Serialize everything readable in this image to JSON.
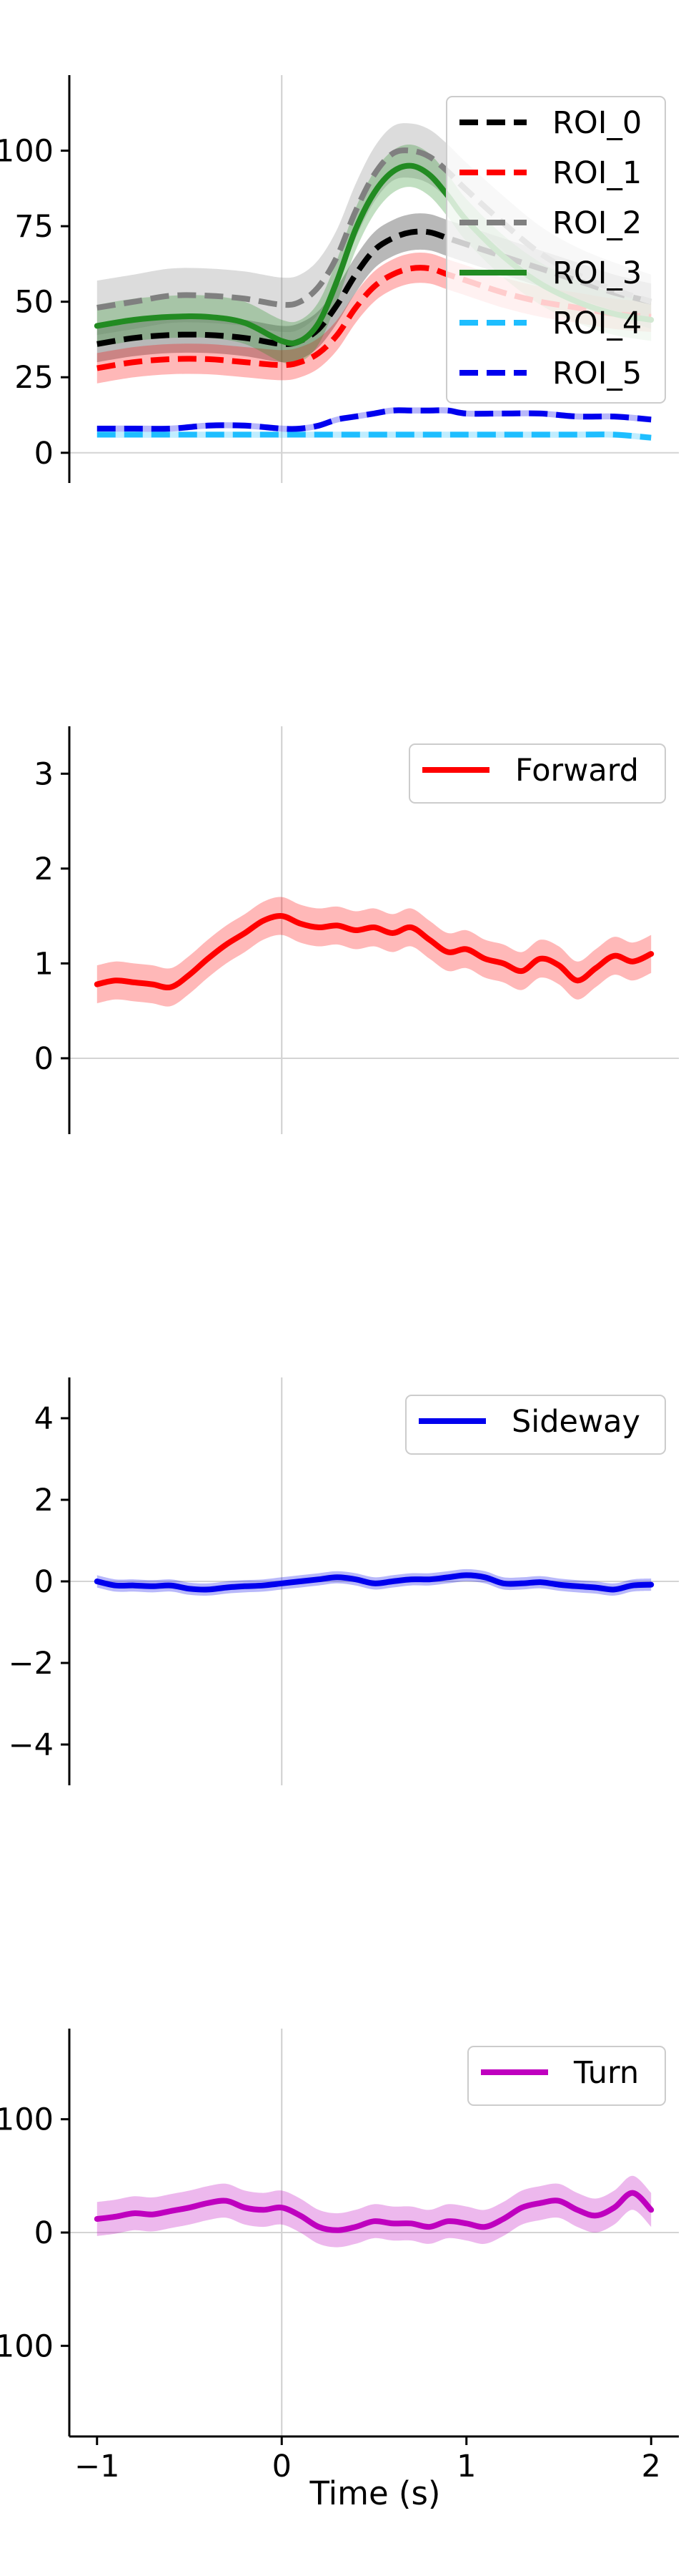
{
  "figure": {
    "xlabel": "Time (s)"
  },
  "chart_data": [
    {
      "type": "line",
      "id": "rois",
      "ylim": [
        -10,
        125
      ],
      "yticks": [
        0,
        25,
        50,
        75,
        100
      ],
      "ytick_labels": [
        "0",
        "25",
        "50",
        "75",
        "100"
      ],
      "xlim": [
        -1.15,
        2.15
      ],
      "legend": "top-right",
      "x": [
        -1.0,
        -0.8,
        -0.6,
        -0.4,
        -0.2,
        0.0,
        0.1,
        0.2,
        0.3,
        0.4,
        0.5,
        0.6,
        0.7,
        0.8,
        0.9,
        1.0,
        1.2,
        1.4,
        1.6,
        1.8,
        2.0
      ],
      "series": [
        {
          "name": "ROI_0",
          "color": "#000000",
          "dash": true,
          "band": 6,
          "values": [
            36,
            38,
            39,
            39,
            38,
            36,
            37,
            41,
            49,
            59,
            67,
            71,
            73,
            73,
            71,
            69,
            65,
            61,
            57,
            53,
            50
          ]
        },
        {
          "name": "ROI_1",
          "color": "#ff0000",
          "dash": true,
          "band": 5,
          "values": [
            28,
            30,
            31,
            31,
            30,
            29,
            30,
            33,
            39,
            48,
            55,
            59,
            61,
            61,
            59,
            57,
            53,
            50,
            48,
            46,
            45
          ]
        },
        {
          "name": "ROI_2",
          "color": "#808080",
          "dash": true,
          "band": 9,
          "values": [
            48,
            50,
            52,
            52,
            51,
            49,
            50,
            55,
            65,
            80,
            92,
            99,
            100,
            98,
            93,
            87,
            76,
            66,
            59,
            54,
            50
          ]
        },
        {
          "name": "ROI_3",
          "color": "#228b22",
          "dash": false,
          "band": 7,
          "values": [
            42,
            44,
            45,
            45,
            43,
            37,
            37,
            43,
            57,
            74,
            86,
            93,
            95,
            92,
            85,
            77,
            65,
            56,
            50,
            46,
            44
          ]
        },
        {
          "name": "ROI_4",
          "color": "#1ebeff",
          "dash": true,
          "band": 1,
          "values": [
            6,
            6,
            6,
            6,
            6,
            6,
            6,
            6,
            6,
            6,
            6,
            6,
            6,
            6,
            6,
            6,
            6,
            6,
            6,
            6,
            5
          ]
        },
        {
          "name": "ROI_5",
          "color": "#0000ee",
          "dash": true,
          "band": 1,
          "values": [
            8,
            8,
            8,
            9,
            9,
            8,
            8,
            9,
            11,
            12,
            13,
            14,
            14,
            14,
            14,
            13,
            13,
            13,
            12,
            12,
            11
          ]
        }
      ]
    },
    {
      "type": "line",
      "id": "forward",
      "ylim": [
        -0.8,
        3.5
      ],
      "yticks": [
        0,
        1,
        2,
        3
      ],
      "ytick_labels": [
        "0",
        "1",
        "2",
        "3"
      ],
      "xlim": [
        -1.15,
        2.15
      ],
      "legend": "top-right",
      "x": [
        -1.0,
        -0.9,
        -0.8,
        -0.7,
        -0.6,
        -0.5,
        -0.4,
        -0.3,
        -0.2,
        -0.1,
        0.0,
        0.1,
        0.2,
        0.3,
        0.4,
        0.5,
        0.6,
        0.7,
        0.8,
        0.9,
        1.0,
        1.1,
        1.2,
        1.3,
        1.4,
        1.5,
        1.6,
        1.7,
        1.8,
        1.9,
        2.0
      ],
      "series": [
        {
          "name": "Forward",
          "color": "#ff0000",
          "dash": false,
          "band": 0.2,
          "values": [
            0.78,
            0.82,
            0.8,
            0.78,
            0.75,
            0.88,
            1.05,
            1.2,
            1.32,
            1.45,
            1.5,
            1.42,
            1.38,
            1.4,
            1.35,
            1.38,
            1.32,
            1.38,
            1.25,
            1.12,
            1.15,
            1.05,
            1.0,
            0.92,
            1.05,
            0.98,
            0.82,
            0.95,
            1.08,
            1.02,
            1.1
          ]
        }
      ]
    },
    {
      "type": "line",
      "id": "sideway",
      "ylim": [
        -5,
        5
      ],
      "yticks": [
        -4,
        -2,
        0,
        2,
        4
      ],
      "ytick_labels": [
        "−4",
        "−2",
        "0",
        "2",
        "4"
      ],
      "xlim": [
        -1.15,
        2.15
      ],
      "legend": "top-right",
      "x": [
        -1.0,
        -0.9,
        -0.8,
        -0.7,
        -0.6,
        -0.5,
        -0.4,
        -0.3,
        -0.2,
        -0.1,
        0.0,
        0.1,
        0.2,
        0.3,
        0.4,
        0.5,
        0.6,
        0.7,
        0.8,
        0.9,
        1.0,
        1.1,
        1.2,
        1.3,
        1.4,
        1.5,
        1.6,
        1.7,
        1.8,
        1.9,
        2.0
      ],
      "series": [
        {
          "name": "Sideway",
          "color": "#0000ee",
          "dash": false,
          "band": 0.15,
          "values": [
            0.0,
            -0.1,
            -0.1,
            -0.12,
            -0.1,
            -0.18,
            -0.2,
            -0.15,
            -0.12,
            -0.1,
            -0.05,
            0.0,
            0.05,
            0.1,
            0.05,
            -0.05,
            0.0,
            0.05,
            0.05,
            0.1,
            0.15,
            0.1,
            -0.05,
            -0.05,
            -0.02,
            -0.08,
            -0.12,
            -0.15,
            -0.2,
            -0.1,
            -0.08
          ]
        }
      ]
    },
    {
      "type": "line",
      "id": "turn",
      "ylim": [
        -180,
        180
      ],
      "yticks": [
        -100,
        0,
        100
      ],
      "ytick_labels": [
        "−100",
        "0",
        "100"
      ],
      "xlim": [
        -1.15,
        2.15
      ],
      "legend": "top-right",
      "x": [
        -1.0,
        -0.9,
        -0.8,
        -0.7,
        -0.6,
        -0.5,
        -0.4,
        -0.3,
        -0.2,
        -0.1,
        0.0,
        0.1,
        0.2,
        0.3,
        0.4,
        0.5,
        0.6,
        0.7,
        0.8,
        0.9,
        1.0,
        1.1,
        1.2,
        1.3,
        1.4,
        1.5,
        1.6,
        1.7,
        1.8,
        1.9,
        2.0
      ],
      "series": [
        {
          "name": "Turn",
          "color": "#bf00bf",
          "dash": false,
          "band": 15,
          "values": [
            12,
            14,
            17,
            16,
            19,
            22,
            26,
            28,
            22,
            20,
            22,
            15,
            5,
            2,
            5,
            10,
            8,
            8,
            5,
            10,
            8,
            5,
            12,
            22,
            26,
            28,
            20,
            15,
            22,
            35,
            20
          ]
        }
      ]
    }
  ]
}
